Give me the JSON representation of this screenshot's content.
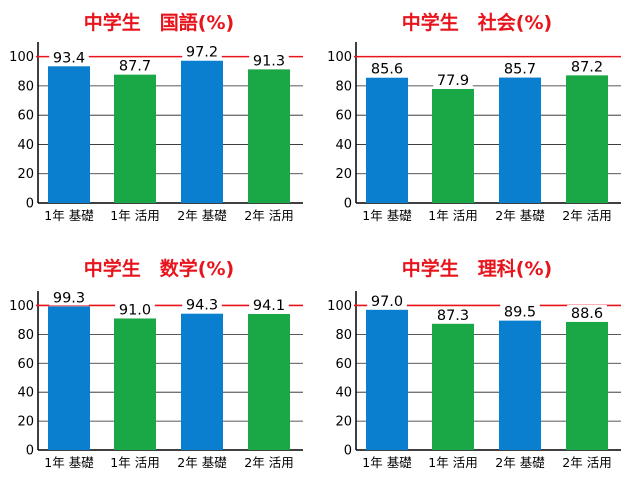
{
  "colors": {
    "kiso": "#0a7fd0",
    "katsuyo": "#1aa847",
    "reference_line": "#e8141c",
    "grid": "#222222",
    "title": "#e8141c"
  },
  "chart_data": [
    {
      "type": "bar",
      "title": "中学生　国語(%)",
      "categories": [
        "1年 基礎",
        "1年 活用",
        "2年 基礎",
        "2年 活用"
      ],
      "values": [
        93.4,
        87.7,
        97.2,
        91.3
      ],
      "value_labels": [
        "93.4",
        "87.7",
        "97.2",
        "91.3"
      ],
      "bar_colors": [
        "kiso",
        "katsuyo",
        "kiso",
        "katsuyo"
      ],
      "yticks": [
        "0",
        "20",
        "40",
        "60",
        "80",
        "100"
      ],
      "ylim": [
        0,
        110
      ],
      "reference_line": 100,
      "grid": true
    },
    {
      "type": "bar",
      "title": "中学生　社会(%)",
      "categories": [
        "1年 基礎",
        "1年 活用",
        "2年 基礎",
        "2年 活用"
      ],
      "values": [
        85.6,
        77.9,
        85.7,
        87.2
      ],
      "value_labels": [
        "85.6",
        "77.9",
        "85.7",
        "87.2"
      ],
      "bar_colors": [
        "kiso",
        "katsuyo",
        "kiso",
        "katsuyo"
      ],
      "yticks": [
        "0",
        "20",
        "40",
        "60",
        "80",
        "100"
      ],
      "ylim": [
        0,
        110
      ],
      "reference_line": 100,
      "grid": true
    },
    {
      "type": "bar",
      "title": "中学生　数学(%)",
      "categories": [
        "1年 基礎",
        "1年 活用",
        "2年 基礎",
        "2年 活用"
      ],
      "values": [
        99.3,
        91.0,
        94.3,
        94.1
      ],
      "value_labels": [
        "99.3",
        "91.0",
        "94.3",
        "94.1"
      ],
      "bar_colors": [
        "kiso",
        "katsuyo",
        "kiso",
        "katsuyo"
      ],
      "yticks": [
        "0",
        "20",
        "40",
        "60",
        "80",
        "100"
      ],
      "ylim": [
        0,
        110
      ],
      "reference_line": 100,
      "grid": true
    },
    {
      "type": "bar",
      "title": "中学生　理科(%)",
      "categories": [
        "1年 基礎",
        "1年 活用",
        "2年 基礎",
        "2年 活用"
      ],
      "values": [
        97.0,
        87.3,
        89.5,
        88.6
      ],
      "value_labels": [
        "97.0",
        "87.3",
        "89.5",
        "88.6"
      ],
      "bar_colors": [
        "kiso",
        "katsuyo",
        "kiso",
        "katsuyo"
      ],
      "yticks": [
        "0",
        "20",
        "40",
        "60",
        "80",
        "100"
      ],
      "ylim": [
        0,
        110
      ],
      "reference_line": 100,
      "grid": true
    }
  ]
}
